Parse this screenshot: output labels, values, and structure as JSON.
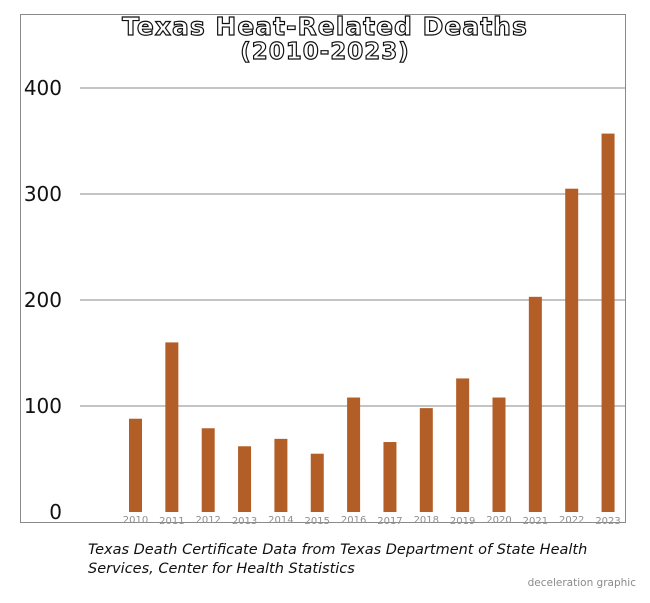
{
  "chart_data": {
    "type": "bar",
    "title_line1": "Texas Heat-Related Deaths",
    "title_line2": "(2010-2023)",
    "xlabel": "",
    "ylabel": "",
    "categories": [
      "2010",
      "2011",
      "2012",
      "2013",
      "2014",
      "2015",
      "2016",
      "2017",
      "2018",
      "2019",
      "2020",
      "2021",
      "2022",
      "2023"
    ],
    "values": [
      88,
      160,
      79,
      62,
      69,
      55,
      108,
      66,
      98,
      126,
      108,
      203,
      305,
      357
    ],
    "y_ticks": [
      0,
      100,
      200,
      300,
      400
    ],
    "ylim": [
      0,
      400
    ],
    "grid": true,
    "bar_color": "#b35e27",
    "legend": "none"
  },
  "source_note": "Texas Death Certificate Data from Texas Department of State Health Services, Center for Health Statistics",
  "credit": "deceleration graphic"
}
